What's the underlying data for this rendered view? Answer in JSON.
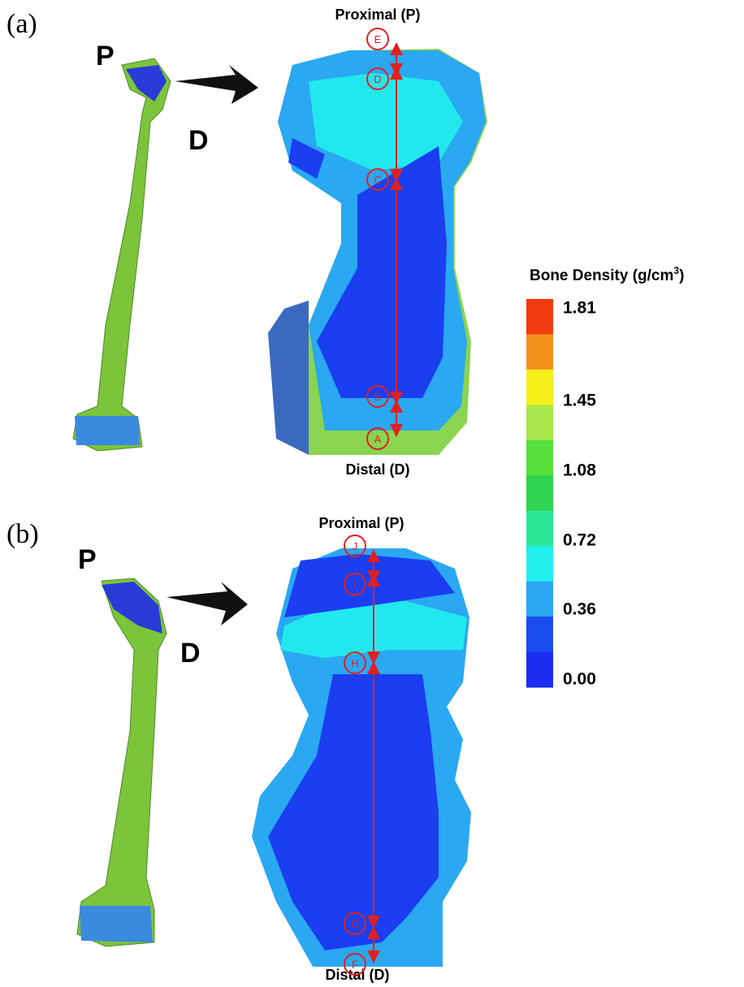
{
  "panels": [
    {
      "label": "(a)",
      "proximal_letter": "P",
      "distal_letter": "D",
      "proximal_caption": "Proximal (P)",
      "distal_caption": "Distal (D)",
      "points": [
        "E",
        "D",
        "C",
        "B",
        "A"
      ]
    },
    {
      "label": "(b)",
      "proximal_letter": "P",
      "distal_letter": "D",
      "proximal_caption": "Proximal (P)",
      "distal_caption": "Distal (D)",
      "points": [
        "J",
        "I",
        "H",
        "G",
        "F"
      ]
    }
  ],
  "colorbar": {
    "title": "Bone Density (g/cm",
    "title_superscript": "3",
    "title_end": ")",
    "colors": [
      "#f23a10",
      "#f5921c",
      "#f7ef1a",
      "#a8e84a",
      "#55e03c",
      "#2fd452",
      "#2ee89a",
      "#22f0ee",
      "#2aa8f2",
      "#1a4cf0",
      "#1c2cf2"
    ],
    "tick_labels": [
      "1.81",
      "1.45",
      "1.08",
      "0.72",
      "0.36",
      "0.00"
    ]
  }
}
